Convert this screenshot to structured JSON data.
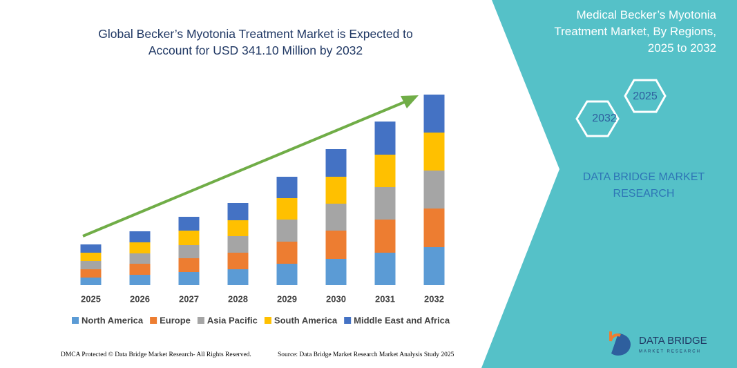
{
  "chart_data": {
    "type": "stacked-bar",
    "title": "Global Becker’s Myotonia Treatment Market is Expected to Account for USD 341.10 Million by 2032",
    "categories": [
      "2025",
      "2026",
      "2027",
      "2028",
      "2029",
      "2030",
      "2031",
      "2032"
    ],
    "series": [
      {
        "name": "North America",
        "color": "#5b9bd5",
        "values": [
          11,
          15,
          19,
          23,
          31,
          38,
          47,
          55
        ]
      },
      {
        "name": "Europe",
        "color": "#ed7d31",
        "values": [
          12,
          16,
          20,
          24,
          32,
          41,
          48,
          56
        ]
      },
      {
        "name": "Asia Pacific",
        "color": "#a5a5a5",
        "values": [
          12,
          15,
          19,
          24,
          32,
          39,
          47,
          55
        ]
      },
      {
        "name": "South America",
        "color": "#ffc000",
        "values": [
          12,
          16,
          21,
          23,
          31,
          39,
          47,
          55
        ]
      },
      {
        "name": "Middle East and Africa",
        "color": "#4472c4",
        "values": [
          12,
          16,
          20,
          25,
          31,
          40,
          48,
          55
        ]
      }
    ]
  },
  "panel": {
    "title": "Medical Becker’s Myotonia Treatment Market, By Regions, 2025 to 2032",
    "hex_top": "2025",
    "hex_bottom": "2032",
    "brand": "DATA BRIDGE MARKET RESEARCH",
    "logo": "DATA BRIDGE",
    "logo_sub": "MARKET RESEARCH"
  },
  "footer": {
    "left": "DMCA Protected © Data Bridge Market Research- All Rights Reserved.",
    "right": "Source: Data Bridge Market Research Market Analysis Study 2025"
  }
}
